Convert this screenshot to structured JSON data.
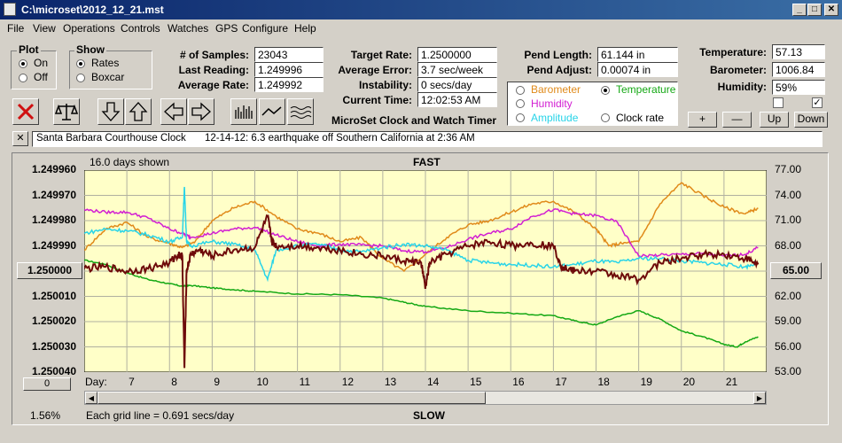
{
  "window": {
    "title": "C:\\microset\\2012_12_21.mst",
    "min": "_",
    "max": "□",
    "close": "✕"
  },
  "menu": [
    "File",
    "View",
    "Operations",
    "Controls",
    "Watches",
    "GPS",
    "Configure",
    "Help"
  ],
  "plot_group": {
    "title": "Plot",
    "on": "On",
    "off": "Off",
    "selected": "On"
  },
  "show_group": {
    "title": "Show",
    "rates": "Rates",
    "boxcar": "Boxcar",
    "selected": "Rates"
  },
  "stats": {
    "samples_label": "# of Samples:",
    "samples": "23043",
    "last_label": "Last Reading:",
    "last": "1.249996",
    "avg_label": "Average Rate:",
    "avg": "1.249992"
  },
  "rate": {
    "target_label": "Target Rate:",
    "target": "1.2500000",
    "error_label": "Average Error:",
    "error": "3.7 sec/week",
    "instab_label": "Instability:",
    "instab": "0 secs/day",
    "time_label": "Current Time:",
    "time": "12:02:53 AM"
  },
  "pend": {
    "length_label": "Pend Length:",
    "length": "61.144 in",
    "adjust_label": "Pend Adjust:",
    "adjust": "0.00074 in"
  },
  "env": {
    "temp_label": "Temperature:",
    "temp": "57.13",
    "baro_label": "Barometer:",
    "baro": "1006.84",
    "hum_label": "Humidity:",
    "hum": "59%"
  },
  "overlay_options": {
    "barometer": "Barometer",
    "temperature": "Temperature",
    "humidity": "Humidity",
    "amplitude": "Amplitude",
    "clock_rate": "Clock rate",
    "selected": "Temperature"
  },
  "colors": {
    "barometer": "#e08a1a",
    "temperature": "#14a814",
    "humidity": "#d21ed2",
    "amplitude": "#28d4e8",
    "rate": "#6e0a0a",
    "plot_bg": "#ffffc8"
  },
  "scale_buttons": {
    "plus": "+",
    "minus": "—",
    "up": "Up",
    "down": "Down"
  },
  "app_name": "MicroSet Clock and Watch Timer",
  "note": {
    "clock": "Santa Barbara Courthouse Clock",
    "comment": "12-14-12: 6.3 earthquake off Southern California at 2:36 AM"
  },
  "toolbar_icons": [
    "close-x-icon",
    "balance-scale-icon",
    "arrow-down-icon",
    "arrow-up-icon",
    "arrow-left-icon",
    "arrow-right-icon",
    "bar-graph-icon",
    "line-graph-icon",
    "wave-graph-icon"
  ],
  "chart": {
    "days_shown": "16.0 days shown",
    "fast_label": "FAST",
    "slow_label": "SLOW",
    "left_button": "1.250000",
    "right_button": "65.00",
    "bottom_button": "0",
    "percent": "1.56%",
    "grid_note": "Each grid line = 0.691 secs/day",
    "day_label": "Day:"
  },
  "chart_data": {
    "type": "line",
    "xlabel": "Day:",
    "x_ticks": [
      7,
      8,
      9,
      10,
      11,
      12,
      13,
      14,
      15,
      16,
      17,
      18,
      19,
      20,
      21
    ],
    "xlim": [
      6.0,
      22.0
    ],
    "y_left": {
      "ticks": [
        "1.249960",
        "1.249970",
        "1.249980",
        "1.249990",
        "1.250000",
        "1.250010",
        "1.250020",
        "1.250030",
        "1.250040"
      ],
      "lim": [
        1.24996,
        1.25004
      ],
      "inverted": true
    },
    "y_right": {
      "ticks": [
        "77.00",
        "74.00",
        "71.00",
        "68.00",
        "65.00",
        "62.00",
        "59.00",
        "56.00",
        "53.00"
      ],
      "lim": [
        53.0,
        77.0
      ]
    },
    "grid": true,
    "series": [
      {
        "color": "#14a814",
        "axis": "right",
        "x": [
          6.0,
          6.5,
          7.0,
          7.5,
          8.0,
          8.3,
          8.5,
          9.0,
          9.5,
          10.0,
          11.0,
          12.0,
          13.0,
          13.5,
          14.0,
          15.0,
          16.0,
          17.0,
          17.5,
          18.0,
          18.5,
          19.0,
          19.5,
          20.0,
          20.5,
          21.0,
          21.3,
          21.5,
          21.8
        ],
        "y": [
          66.3,
          65.8,
          64.8,
          64.0,
          63.5,
          63.2,
          63.3,
          63.0,
          62.8,
          62.6,
          62.3,
          62.2,
          61.8,
          61.3,
          60.8,
          60.3,
          60.0,
          59.7,
          59.1,
          58.6,
          59.6,
          60.3,
          59.3,
          57.9,
          57.2,
          56.3,
          56.0,
          56.6,
          57.2
        ]
      },
      {
        "color": "#e08a1a",
        "axis": "right",
        "x": [
          6.0,
          6.5,
          7.0,
          7.5,
          8.0,
          8.3,
          8.6,
          9.0,
          9.5,
          10.0,
          10.5,
          11.0,
          11.5,
          12.0,
          12.5,
          13.0,
          13.5,
          14.0,
          14.5,
          15.0,
          15.5,
          16.0,
          16.5,
          17.0,
          17.5,
          18.0,
          18.3,
          18.6,
          19.0,
          19.5,
          20.0,
          20.5,
          21.0,
          21.5,
          21.8
        ],
        "y": [
          67.5,
          70.0,
          70.8,
          69.0,
          68.3,
          67.8,
          68.5,
          71.0,
          72.5,
          73.3,
          71.5,
          70.0,
          69.5,
          68.5,
          69.0,
          66.5,
          65.0,
          67.0,
          69.0,
          70.5,
          71.0,
          72.0,
          73.0,
          73.3,
          72.0,
          70.0,
          68.0,
          68.3,
          68.5,
          73.0,
          75.5,
          74.0,
          72.6,
          71.8,
          72.5
        ]
      },
      {
        "color": "#d21ed2",
        "axis": "right",
        "x": [
          6.0,
          6.5,
          7.0,
          7.5,
          8.0,
          8.3,
          8.5,
          9.0,
          9.5,
          10.0,
          10.5,
          11.0,
          11.5,
          12.0,
          12.5,
          13.0,
          13.5,
          14.0,
          14.5,
          15.0,
          15.5,
          16.0,
          16.5,
          17.0,
          17.5,
          18.0,
          18.5,
          19.0,
          19.5,
          20.0,
          20.5,
          21.0,
          21.5,
          21.8
        ],
        "y": [
          72.3,
          72.0,
          72.0,
          71.3,
          70.0,
          69.5,
          69.0,
          69.5,
          70.0,
          70.2,
          69.3,
          68.5,
          68.0,
          68.2,
          68.1,
          68.0,
          67.4,
          67.3,
          67.8,
          68.8,
          69.5,
          70.0,
          71.5,
          72.3,
          71.8,
          71.6,
          70.8,
          66.8,
          66.9,
          67.0,
          67.1,
          66.8,
          67.0,
          67.8
        ]
      },
      {
        "color": "#28d4e8",
        "axis": "right",
        "x": [
          6.0,
          6.5,
          7.0,
          7.5,
          8.0,
          8.3,
          8.35,
          8.4,
          8.5,
          9.0,
          9.5,
          10.0,
          10.3,
          10.5,
          11.0,
          11.5,
          12.0,
          12.5,
          13.0,
          13.5,
          14.0,
          14.5,
          15.0,
          15.5,
          16.0,
          16.5,
          17.0,
          17.5,
          18.0,
          18.5,
          19.0,
          19.5,
          20.0,
          20.5,
          21.0,
          21.5,
          21.8
        ],
        "y": [
          69.5,
          70.0,
          69.8,
          69.3,
          68.5,
          69.0,
          75.0,
          68.5,
          68.0,
          68.5,
          68.2,
          67.5,
          64.0,
          67.5,
          68.0,
          68.2,
          67.5,
          67.3,
          67.8,
          68.2,
          68.0,
          67.5,
          66.3,
          66.0,
          65.8,
          65.7,
          65.5,
          65.8,
          66.2,
          66.0,
          66.5,
          66.5,
          66.2,
          66.0,
          65.8,
          65.5,
          66.0
        ]
      },
      {
        "color": "#6e0a0a",
        "axis": "right",
        "x": [
          6.0,
          6.5,
          7.0,
          7.5,
          8.0,
          8.2,
          8.3,
          8.35,
          8.4,
          8.5,
          8.7,
          9.0,
          9.5,
          10.0,
          10.3,
          10.4,
          10.5,
          11.0,
          11.5,
          12.0,
          12.5,
          13.0,
          13.5,
          13.9,
          14.0,
          14.1,
          14.5,
          15.0,
          15.5,
          16.0,
          16.5,
          17.0,
          17.2,
          17.5,
          18.0,
          18.5,
          19.0,
          19.5,
          20.0,
          20.5,
          21.0,
          21.5,
          21.8
        ],
        "y": [
          65.3,
          65.5,
          65.0,
          65.3,
          66.0,
          67.0,
          66.8,
          53.5,
          65.0,
          67.0,
          67.5,
          66.8,
          67.5,
          67.8,
          71.5,
          68.5,
          68.0,
          68.0,
          67.8,
          67.5,
          67.0,
          66.8,
          66.2,
          66.0,
          63.0,
          66.0,
          67.0,
          68.0,
          68.5,
          68.0,
          68.3,
          68.0,
          65.5,
          65.0,
          65.0,
          64.5,
          64.0,
          66.0,
          66.5,
          67.0,
          67.0,
          66.5,
          65.8
        ]
      }
    ]
  }
}
